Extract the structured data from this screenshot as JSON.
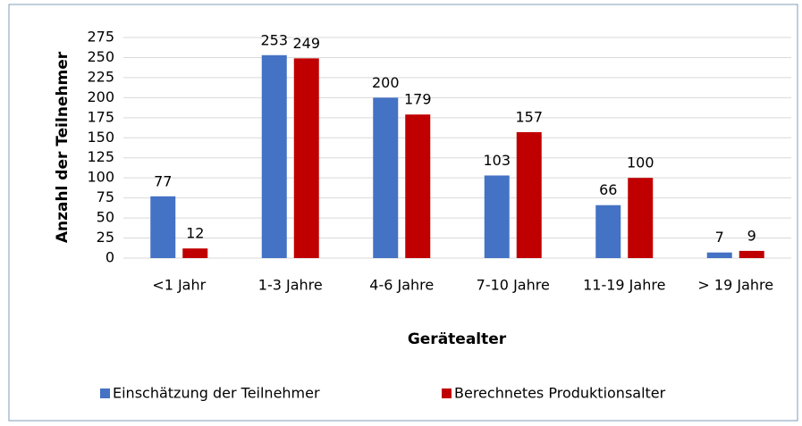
{
  "chart_data": {
    "type": "bar",
    "y_label": "Anzahl der Teilnehmer",
    "x_label": "Gerätealter",
    "categories": [
      "<1 Jahr",
      "1-3 Jahre",
      "4-6 Jahre",
      "7-10 Jahre",
      "11-19 Jahre",
      "> 19 Jahre"
    ],
    "series": [
      {
        "name": "Einschätzung der Teilnehmer",
        "color": "#4472c4",
        "values": [
          77,
          253,
          200,
          103,
          66,
          7
        ]
      },
      {
        "name": "Berechnetes Produktionsalter",
        "color": "#c00000",
        "values": [
          12,
          249,
          179,
          157,
          100,
          9
        ]
      }
    ],
    "ylim": [
      0,
      275
    ],
    "yticks": [
      0,
      25,
      50,
      75,
      100,
      125,
      150,
      175,
      200,
      225,
      250,
      275
    ],
    "grid": true
  }
}
